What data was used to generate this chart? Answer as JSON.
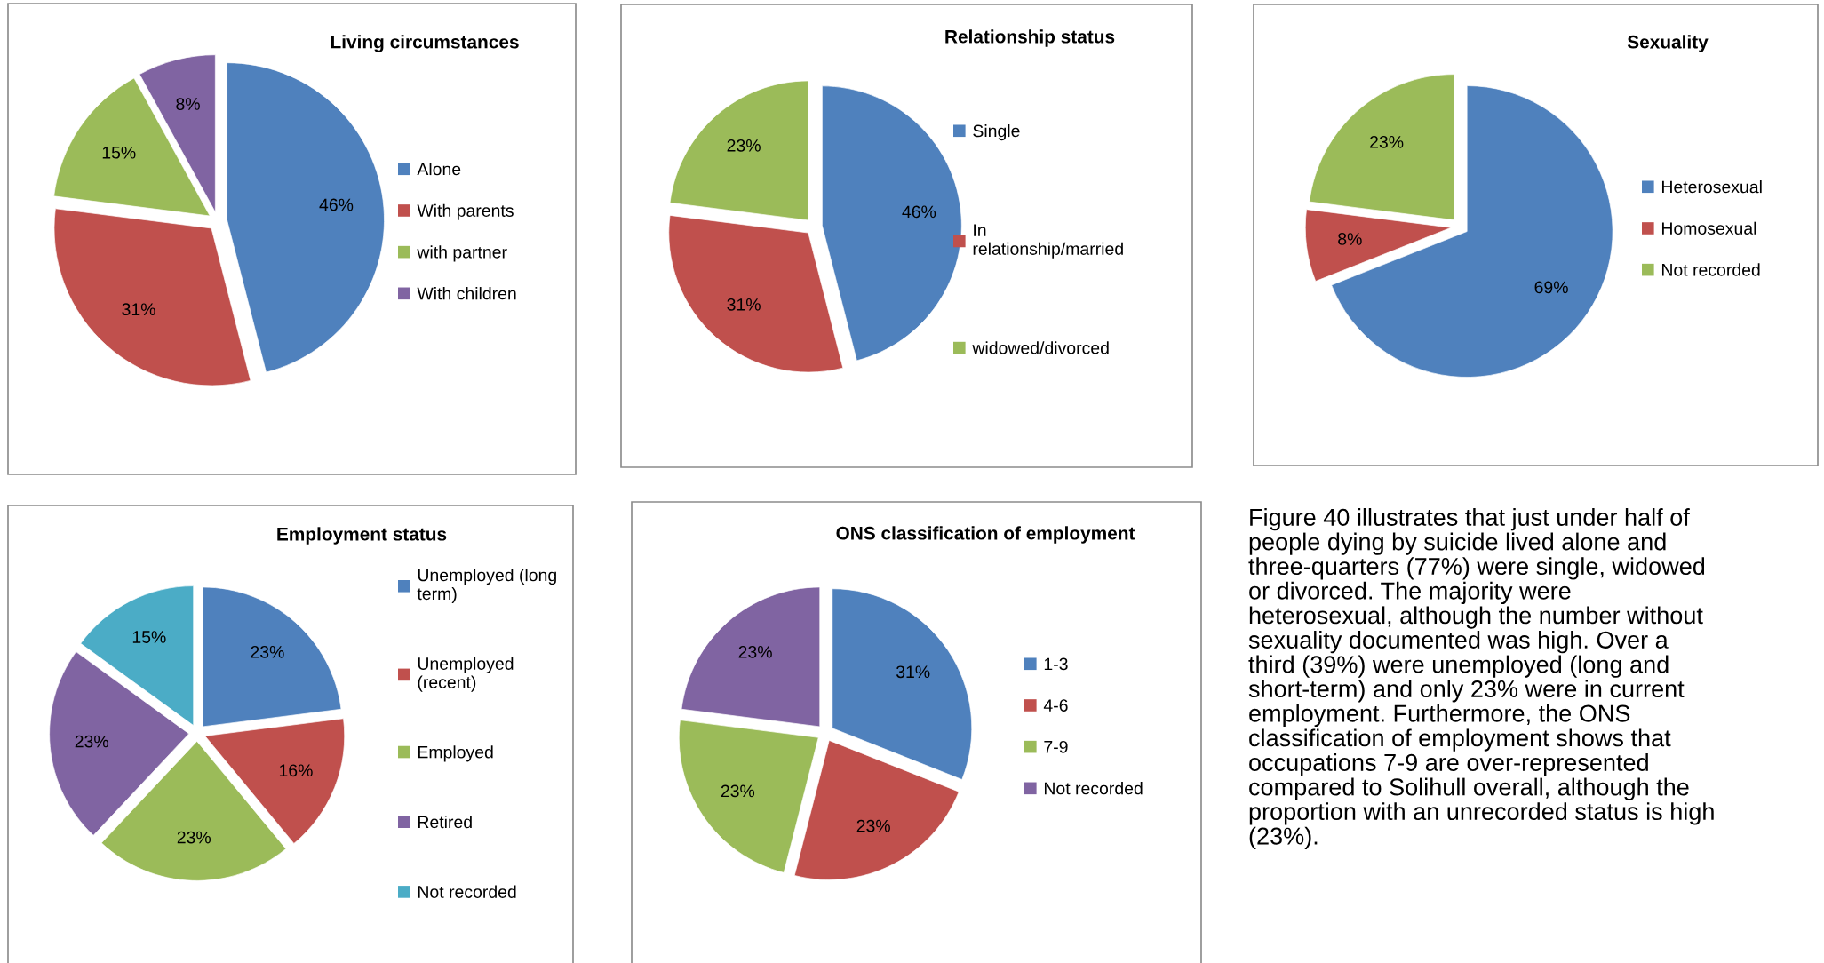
{
  "chart_data": [
    {
      "type": "pie",
      "title": "Living circumstances",
      "categories": [
        "Alone",
        "With parents",
        "with partner",
        "With children"
      ],
      "values": [
        46,
        31,
        15,
        8
      ],
      "value_labels": [
        "46%",
        "31%",
        "15%",
        "8%"
      ],
      "colors": [
        "#4f81bd",
        "#c0504d",
        "#9bbb59",
        "#8064a2"
      ],
      "legend": "right"
    },
    {
      "type": "pie",
      "title": "Relationship status",
      "categories": [
        "Single",
        "In relationship/married",
        "widowed/divorced"
      ],
      "values": [
        46,
        31,
        23
      ],
      "value_labels": [
        "46%",
        "31%",
        "23%"
      ],
      "colors": [
        "#4f81bd",
        "#c0504d",
        "#9bbb59"
      ],
      "legend": "right"
    },
    {
      "type": "pie",
      "title": "Sexuality",
      "categories": [
        "Heterosexual",
        "Homosexual",
        "Not recorded"
      ],
      "values": [
        69,
        8,
        23
      ],
      "value_labels": [
        "69%",
        "8%",
        "23%"
      ],
      "colors": [
        "#4f81bd",
        "#c0504d",
        "#9bbb59"
      ],
      "legend": "right"
    },
    {
      "type": "pie",
      "title": "Employment status",
      "categories": [
        "Unemployed (long term)",
        "Unemployed (recent)",
        "Employed",
        "Retired",
        "Not recorded"
      ],
      "values": [
        23,
        16,
        23,
        23,
        15
      ],
      "value_labels": [
        "23%",
        "16%",
        "23%",
        "23%",
        "15%"
      ],
      "colors": [
        "#4f81bd",
        "#c0504d",
        "#9bbb59",
        "#8064a2",
        "#4bacc6"
      ],
      "legend": "right"
    },
    {
      "type": "pie",
      "title": "ONS classification of employment",
      "categories": [
        "1-3",
        "4-6",
        "7-9",
        "Not recorded"
      ],
      "values": [
        31,
        23,
        23,
        23
      ],
      "value_labels": [
        "31%",
        "23%",
        "23%",
        "23%"
      ],
      "colors": [
        "#4f81bd",
        "#c0504d",
        "#9bbb59",
        "#8064a2"
      ],
      "legend": "right"
    },
    {
      "type": "other",
      "annotations": [
        "Figure 40 illustrates that just under half of\npeople dying by suicide lived alone and\nthree-quarters (77%) were single, widowed\nor divorced. The majority were\nheterosexual, although the number without\nsexuality documented was high. Over a\nthird (39%) were unemployed (long and\nshort-term) and only 23% were in current\nemployment. Furthermore, the ONS\nclassification of employment shows that\noccupations 7-9 are over-represented\ncompared to Solihull overall, although the\nproportion with an unrecorded status is high\n(23%)."
      ]
    }
  ]
}
